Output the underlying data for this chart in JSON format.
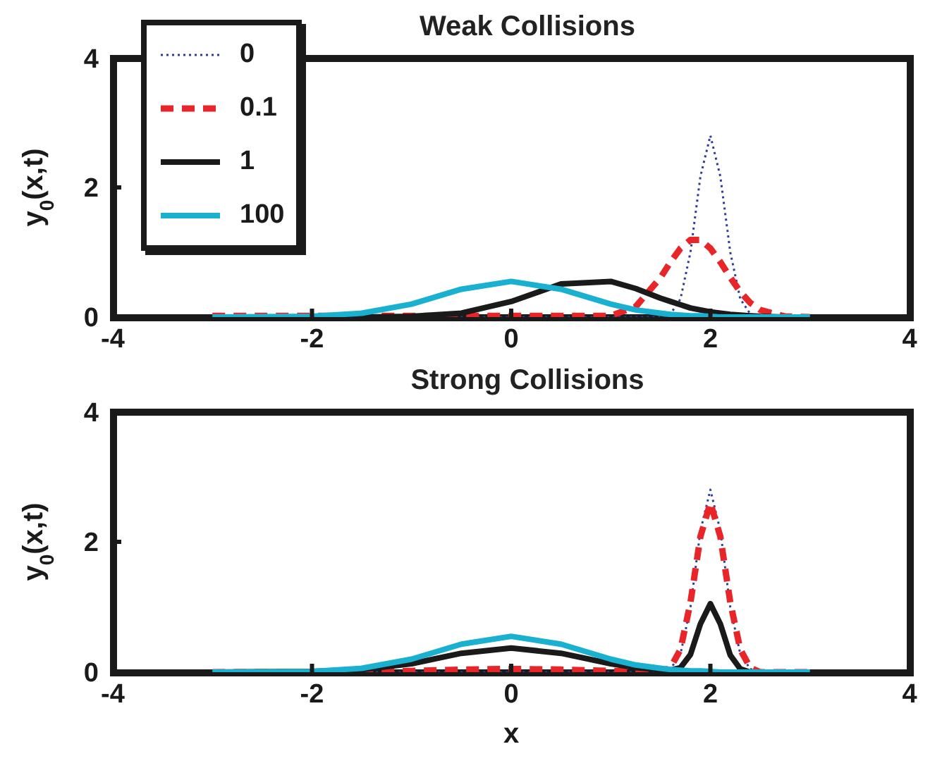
{
  "chart_data": [
    {
      "type": "line",
      "title": "Weak Collisions",
      "ylabel": "y$_{0}$(x,t)",
      "x": [
        -3,
        -2,
        -1.5,
        -1,
        -0.5,
        0,
        0.5,
        1,
        1.25,
        1.5,
        1.6,
        1.7,
        1.8,
        1.9,
        2,
        2.1,
        2.2,
        2.3,
        2.4,
        2.5,
        2.75,
        3
      ],
      "series": [
        {
          "name": "0",
          "color": "#2e3d9a",
          "line_style": "dotted",
          "values": [
            0,
            0,
            0,
            0,
            0,
            0,
            0,
            0,
            0,
            0,
            0.05,
            0.28,
            1.0,
            2.17,
            2.8,
            2.17,
            1.0,
            0.28,
            0.05,
            0,
            0,
            0
          ]
        },
        {
          "name": "0.1",
          "color": "#e8262a",
          "line_style": "dashed",
          "values": [
            0.02,
            0.02,
            0.02,
            0.02,
            0.02,
            0.02,
            0.02,
            0.02,
            0.16,
            0.61,
            0.85,
            1.06,
            1.19,
            1.19,
            1.06,
            0.85,
            0.61,
            0.39,
            0.22,
            0.11,
            0.01,
            0
          ]
        },
        {
          "name": "1",
          "color": "#1a1a1a",
          "line_style": "solid",
          "values": [
            0,
            0,
            0,
            0.01,
            0.06,
            0.24,
            0.51,
            0.55,
            0.44,
            0.29,
            0.24,
            0.19,
            0.14,
            0.11,
            0.08,
            0.06,
            0.04,
            0.03,
            0.02,
            0.01,
            0,
            0
          ]
        },
        {
          "name": "100",
          "color": "#1ab0d0",
          "line_style": "solid",
          "values": [
            0,
            0.01,
            0.06,
            0.2,
            0.43,
            0.55,
            0.43,
            0.2,
            0.11,
            0.06,
            0.04,
            0.03,
            0.02,
            0.02,
            0.01,
            0,
            0,
            0,
            0,
            0,
            0,
            0
          ]
        }
      ],
      "xlim": [
        -4,
        4
      ],
      "xticks": [
        -4,
        -2,
        0,
        2,
        4
      ],
      "ylim": [
        0,
        4
      ],
      "yticks": [
        0,
        2,
        4
      ],
      "grid": false,
      "legend": "top left"
    },
    {
      "type": "line",
      "title": "Strong Collisions",
      "xlabel": "x",
      "ylabel": "y$_{0}$(x,t)",
      "x": [
        -3,
        -2,
        -1.5,
        -1,
        -0.5,
        0,
        0.5,
        1,
        1.25,
        1.5,
        1.6,
        1.7,
        1.8,
        1.9,
        2,
        2.1,
        2.2,
        2.3,
        2.4,
        2.5,
        2.75,
        3
      ],
      "series": [
        {
          "color": "#2e3d9a",
          "line_style": "dotted",
          "values": [
            0,
            0,
            0,
            0,
            0,
            0,
            0,
            0,
            0,
            0,
            0.05,
            0.28,
            1.0,
            2.17,
            2.8,
            2.17,
            1.0,
            0.28,
            0.05,
            0,
            0,
            0
          ]
        },
        {
          "color": "#e8262a",
          "line_style": "dashed",
          "values": [
            0,
            0,
            0,
            0.02,
            0.04,
            0.05,
            0.04,
            0.02,
            0.01,
            0,
            0.07,
            0.35,
            1.07,
            2.08,
            2.6,
            2.08,
            1.07,
            0.35,
            0.07,
            0,
            0,
            0
          ]
        },
        {
          "color": "#1a1a1a",
          "line_style": "solid",
          "values": [
            0,
            0.01,
            0.04,
            0.13,
            0.29,
            0.37,
            0.29,
            0.13,
            0.07,
            0.04,
            0.03,
            0.07,
            0.27,
            0.74,
            1.05,
            0.74,
            0.26,
            0.05,
            0,
            0,
            0,
            0
          ]
        },
        {
          "color": "#1ab0d0",
          "line_style": "solid",
          "values": [
            0,
            0.01,
            0.06,
            0.2,
            0.43,
            0.55,
            0.43,
            0.2,
            0.11,
            0.06,
            0.04,
            0.03,
            0.02,
            0.02,
            0.01,
            0,
            0,
            0,
            0,
            0,
            0,
            0
          ]
        }
      ],
      "xlim": [
        -4,
        4
      ],
      "xticks": [
        -4,
        -2,
        0,
        2,
        4
      ],
      "ylim": [
        0,
        4
      ],
      "yticks": [
        0,
        2,
        4
      ],
      "grid": false,
      "legend": false
    }
  ]
}
